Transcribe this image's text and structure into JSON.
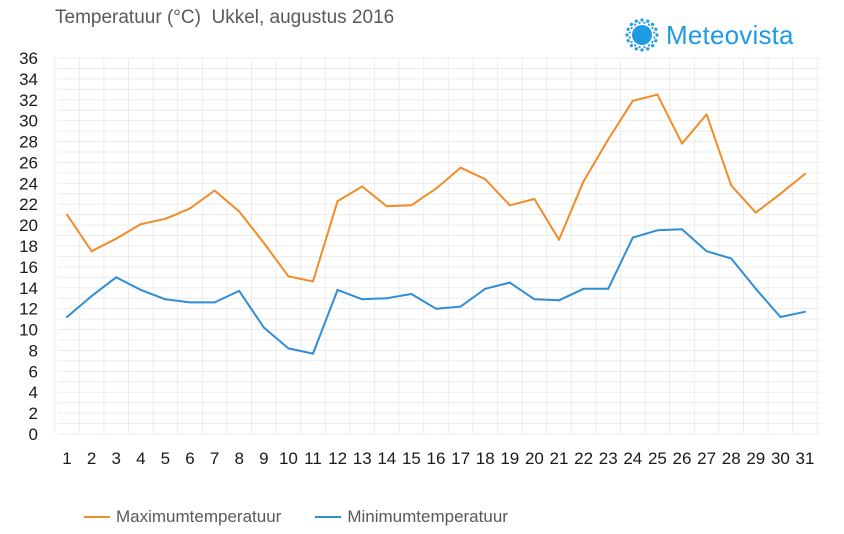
{
  "title": "Temperatuur (°C)  Ukkel, augustus 2016",
  "brand": {
    "name": "Meteovista",
    "logo": "sun-icon",
    "color": "#1f9be6"
  },
  "chart_data": {
    "type": "line",
    "x": [
      1,
      2,
      3,
      4,
      5,
      6,
      7,
      8,
      9,
      10,
      11,
      12,
      13,
      14,
      15,
      16,
      17,
      18,
      19,
      20,
      21,
      22,
      23,
      24,
      25,
      26,
      27,
      28,
      29,
      30,
      31
    ],
    "series": [
      {
        "name": "Maximumtemperatuur",
        "color": "#f28c28",
        "values": [
          21.0,
          17.5,
          18.7,
          20.1,
          20.6,
          21.6,
          23.3,
          21.3,
          18.3,
          15.1,
          14.6,
          22.3,
          23.7,
          21.8,
          21.9,
          23.5,
          25.5,
          24.4,
          21.9,
          22.5,
          18.6,
          24.2,
          28.2,
          31.9,
          32.5,
          27.8,
          30.6,
          23.8,
          21.2,
          23.0,
          24.9
        ]
      },
      {
        "name": "Minimumtemperatuur",
        "color": "#2f8ed6",
        "values": [
          11.2,
          13.2,
          15.0,
          13.8,
          12.9,
          12.6,
          12.6,
          13.7,
          10.2,
          8.2,
          7.7,
          13.8,
          12.9,
          13.0,
          13.4,
          12.0,
          12.2,
          13.9,
          14.5,
          12.9,
          12.8,
          13.9,
          13.9,
          18.8,
          19.5,
          19.6,
          17.5,
          16.8,
          13.9,
          11.2,
          11.7
        ]
      }
    ],
    "ylim": [
      0,
      36
    ],
    "yticks": [
      0,
      2,
      4,
      6,
      8,
      10,
      12,
      14,
      16,
      18,
      20,
      22,
      24,
      26,
      28,
      30,
      32,
      34,
      36
    ],
    "grid": true,
    "gridColor": "#ececec",
    "legend": "bottom-left"
  }
}
